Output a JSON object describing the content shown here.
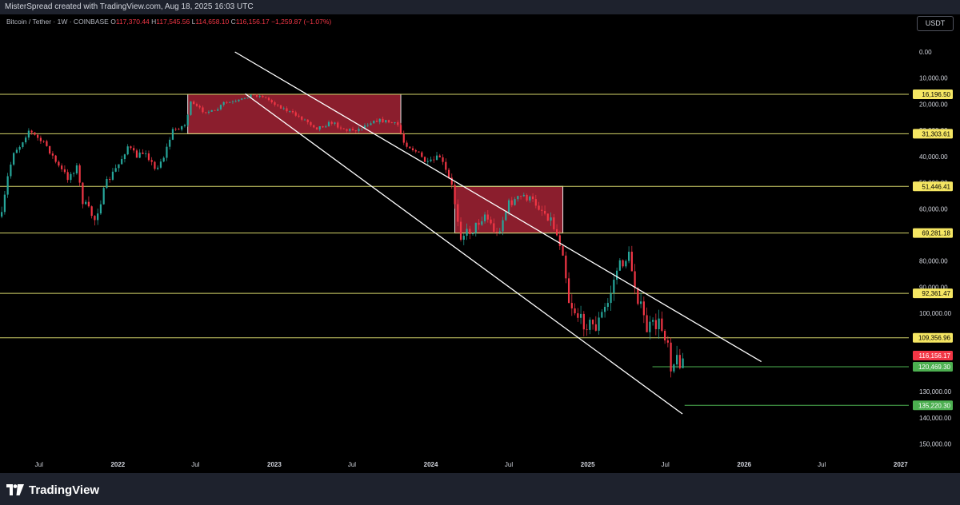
{
  "header": {
    "author_line": "MisterSpread created with TradingView.com, Aug 18, 2025 16:03 UTC"
  },
  "symbol": {
    "name": "Bitcoin / Tether · 1W · COINBASE",
    "open_label": "O",
    "open": "117,370.44",
    "high_label": "H",
    "high": "117,545.56",
    "low_label": "L",
    "low": "114,658.10",
    "close_label": "C",
    "close": "116,156.17",
    "change": "−1,259.87 (−1.07%)"
  },
  "currency": "USDT",
  "footer": {
    "logo_text": "TradingView"
  },
  "colors": {
    "yellow_level": "#d4d46a",
    "green_level": "#4caf50",
    "zone_fill": "#b2263a",
    "candle_up": "#26a69a",
    "candle_down": "#f23645",
    "channel": "#ffffff"
  },
  "chart_data": {
    "type": "candlestick",
    "title": "",
    "axis": {
      "y_scale": "inverted",
      "ylim": [
        0,
        155000
      ],
      "xlim": [
        "2021-04-01",
        "2027-01-20"
      ]
    },
    "yticks": [
      "0.00",
      "10,000.00",
      "20,000.00",
      "30,000.00",
      "40,000.00",
      "50,000.00",
      "60,000.00",
      "70,000.00",
      "80,000.00",
      "90,000.00",
      "100,000.00",
      "110,000.00",
      "120,000.00",
      "130,000.00",
      "140,000.00",
      "150,000.00"
    ],
    "ytick_values": [
      0,
      10000,
      20000,
      30000,
      40000,
      50000,
      60000,
      70000,
      80000,
      90000,
      100000,
      110000,
      120000,
      130000,
      140000,
      150000
    ],
    "xticks": [
      {
        "label": "Jul",
        "date": "2021-07-01",
        "bold": false
      },
      {
        "label": "2022",
        "date": "2022-01-01",
        "bold": true
      },
      {
        "label": "Jul",
        "date": "2022-07-01",
        "bold": false
      },
      {
        "label": "2023",
        "date": "2023-01-01",
        "bold": true
      },
      {
        "label": "Jul",
        "date": "2023-07-01",
        "bold": false
      },
      {
        "label": "2024",
        "date": "2024-01-01",
        "bold": true
      },
      {
        "label": "Jul",
        "date": "2024-07-01",
        "bold": false
      },
      {
        "label": "2025",
        "date": "2025-01-01",
        "bold": true
      },
      {
        "label": "Jul",
        "date": "2025-07-01",
        "bold": false
      },
      {
        "label": "2026",
        "date": "2026-01-01",
        "bold": true
      },
      {
        "label": "Jul",
        "date": "2026-07-01",
        "bold": false
      },
      {
        "label": "2027",
        "date": "2027-01-01",
        "bold": true
      }
    ],
    "levels": [
      {
        "value": 16196.5,
        "label": "16,196.50",
        "kind": "yellow",
        "start": "2021-04-01",
        "end": "2027-01-20"
      },
      {
        "value": 31303.61,
        "label": "31,303.61",
        "kind": "yellow",
        "start": "2021-04-01",
        "end": "2027-01-20"
      },
      {
        "value": 51446.41,
        "label": "51,446.41",
        "kind": "yellow",
        "start": "2021-04-01",
        "end": "2027-01-20"
      },
      {
        "value": 69281.18,
        "label": "69,281.18",
        "kind": "yellow",
        "start": "2021-04-01",
        "end": "2027-01-20"
      },
      {
        "value": 92361.47,
        "label": "92,361.47",
        "kind": "yellow",
        "start": "2021-04-01",
        "end": "2027-01-20"
      },
      {
        "value": 109356.96,
        "label": "109,356.96",
        "kind": "yellow",
        "start": "2021-04-01",
        "end": "2027-01-20"
      },
      {
        "value": 120469.3,
        "label": "120,469.30",
        "kind": "green",
        "start": "2025-06-01",
        "end": "2027-01-20"
      },
      {
        "value": 135220.3,
        "label": "135,220.30",
        "kind": "green",
        "start": "2025-08-15",
        "end": "2027-01-20"
      }
    ],
    "last_price": {
      "value": 116156.17,
      "label": "116,156.17"
    },
    "zones": [
      {
        "start": "2022-06-13",
        "end": "2023-10-23",
        "top": 16196.5,
        "bottom": 31303.61
      },
      {
        "start": "2024-02-26",
        "end": "2024-11-04",
        "top": 51446.41,
        "bottom": 69281.18
      }
    ],
    "channel": [
      {
        "start_date": "2022-10-01",
        "start_value": 0,
        "end_date": "2026-02-10",
        "end_value": 118500
      },
      {
        "start_date": "2022-10-25",
        "start_value": 16000,
        "end_date": "2025-08-10",
        "end_value": 138500
      }
    ],
    "price_path": [
      [
        "2021-04-05",
        63000
      ],
      [
        "2021-04-19",
        48000
      ],
      [
        "2021-05-03",
        38000
      ],
      [
        "2021-05-17",
        36000
      ],
      [
        "2021-06-07",
        30000
      ],
      [
        "2021-06-21",
        32000
      ],
      [
        "2021-07-19",
        36000
      ],
      [
        "2021-08-16",
        44000
      ],
      [
        "2021-09-06",
        48000
      ],
      [
        "2021-09-27",
        44000
      ],
      [
        "2021-10-11",
        57000
      ],
      [
        "2021-11-08",
        64000
      ],
      [
        "2021-12-06",
        50000
      ],
      [
        "2022-01-03",
        43000
      ],
      [
        "2022-01-24",
        36000
      ],
      [
        "2022-02-14",
        40000
      ],
      [
        "2022-03-07",
        38000
      ],
      [
        "2022-03-28",
        45000
      ],
      [
        "2022-04-18",
        40000
      ],
      [
        "2022-05-09",
        30000
      ],
      [
        "2022-06-06",
        28000
      ],
      [
        "2022-06-20",
        19500
      ],
      [
        "2022-07-18",
        22500
      ],
      [
        "2022-08-15",
        23000
      ],
      [
        "2022-09-05",
        19500
      ],
      [
        "2022-10-03",
        19200
      ],
      [
        "2022-11-07",
        16500
      ],
      [
        "2022-12-05",
        17000
      ],
      [
        "2023-01-09",
        20500
      ],
      [
        "2023-02-06",
        23000
      ],
      [
        "2023-03-13",
        26000
      ],
      [
        "2023-04-10",
        29000
      ],
      [
        "2023-05-15",
        27000
      ],
      [
        "2023-06-19",
        30000
      ],
      [
        "2023-07-17",
        29500
      ],
      [
        "2023-08-21",
        26000
      ],
      [
        "2023-09-18",
        26500
      ],
      [
        "2023-10-16",
        28000
      ],
      [
        "2023-10-30",
        34500
      ],
      [
        "2023-11-27",
        38000
      ],
      [
        "2023-12-25",
        43000
      ],
      [
        "2024-01-22",
        40000
      ],
      [
        "2024-02-19",
        51500
      ],
      [
        "2024-03-11",
        70000
      ],
      [
        "2024-04-08",
        68000
      ],
      [
        "2024-05-06",
        62000
      ],
      [
        "2024-06-03",
        70000
      ],
      [
        "2024-07-01",
        58000
      ],
      [
        "2024-08-05",
        55000
      ],
      [
        "2024-09-02",
        58000
      ],
      [
        "2024-10-07",
        64000
      ],
      [
        "2024-11-04",
        76000
      ],
      [
        "2024-11-18",
        95000
      ],
      [
        "2024-12-16",
        103000
      ],
      [
        "2025-01-20",
        105000
      ],
      [
        "2025-02-17",
        96000
      ],
      [
        "2025-03-10",
        83000
      ],
      [
        "2025-04-07",
        78000
      ],
      [
        "2025-04-28",
        94000
      ],
      [
        "2025-05-19",
        106000
      ],
      [
        "2025-06-16",
        104000
      ],
      [
        "2025-07-07",
        110000
      ],
      [
        "2025-07-14",
        119000
      ],
      [
        "2025-07-28",
        118000
      ],
      [
        "2025-08-11",
        117400
      ]
    ]
  }
}
